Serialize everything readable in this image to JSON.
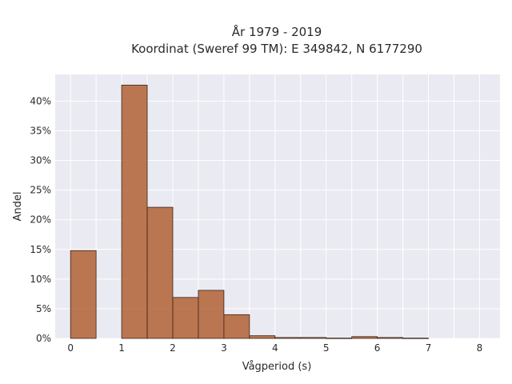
{
  "chart_data": {
    "type": "bar",
    "title_line1": "År 1979 - 2019",
    "title_line2": "Koordinat (Sweref 99 TM): E 349842, N 6177290",
    "xlabel": "Vågperiod (s)",
    "ylabel": "Andel",
    "xlim": [
      -0.3,
      8.4
    ],
    "ylim": [
      0,
      44.5
    ],
    "x_ticks": [
      0,
      1,
      2,
      3,
      4,
      5,
      6,
      7,
      8
    ],
    "y_ticks": [
      0,
      5,
      10,
      15,
      20,
      25,
      30,
      35,
      40
    ],
    "y_tick_suffix": "%",
    "grid": true,
    "bar_color": "#b5693f",
    "bar_edge_color": "#3a2418",
    "plot_background": "#eaeaf2",
    "bins": [
      {
        "x0": 0.0,
        "x1": 0.5,
        "value": 14.8
      },
      {
        "x0": 0.5,
        "x1": 1.0,
        "value": 0
      },
      {
        "x0": 1.0,
        "x1": 1.5,
        "value": 42.7
      },
      {
        "x0": 1.5,
        "x1": 2.0,
        "value": 22.1
      },
      {
        "x0": 2.0,
        "x1": 2.5,
        "value": 6.9
      },
      {
        "x0": 2.5,
        "x1": 3.0,
        "value": 8.1
      },
      {
        "x0": 3.0,
        "x1": 3.5,
        "value": 4.0
      },
      {
        "x0": 3.5,
        "x1": 4.0,
        "value": 0.45
      },
      {
        "x0": 4.0,
        "x1": 4.5,
        "value": 0.15
      },
      {
        "x0": 4.5,
        "x1": 5.0,
        "value": 0.15
      },
      {
        "x0": 5.0,
        "x1": 5.5,
        "value": 0.05
      },
      {
        "x0": 5.5,
        "x1": 6.0,
        "value": 0.3
      },
      {
        "x0": 6.0,
        "x1": 6.5,
        "value": 0.15
      },
      {
        "x0": 6.5,
        "x1": 7.0,
        "value": 0.05
      }
    ]
  }
}
